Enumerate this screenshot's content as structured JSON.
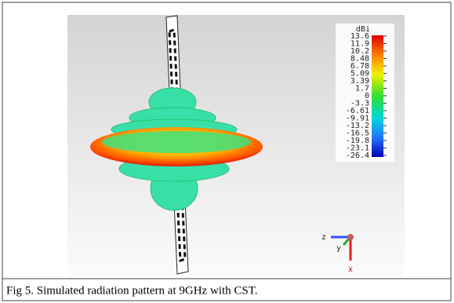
{
  "figure": {
    "colorbar": {
      "unit": "dBi",
      "labels": [
        "13.6",
        "11.9",
        "10.2",
        "8.48",
        "6.78",
        "5.09",
        "3.39",
        "1.7",
        "0",
        "-3.3",
        "-6.61",
        "-9.91",
        "-13.2",
        "-16.5",
        "-19.8",
        "-23.1",
        "-26.4"
      ]
    },
    "axes": {
      "z": "z",
      "y": "y",
      "x": "x"
    },
    "caption": "Fig 5. Simulated radiation pattern at 9GHz with CST."
  }
}
